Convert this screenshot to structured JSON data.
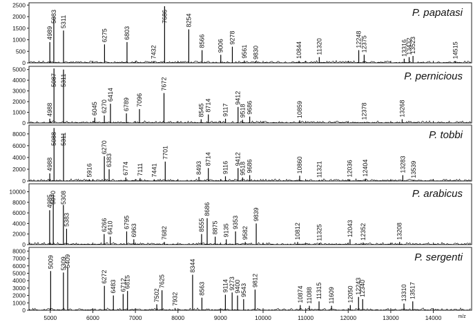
{
  "chart_data": [
    {
      "type": "line",
      "title": "P. papatasi",
      "xlabel": "m/z",
      "xlim": [
        4500,
        14900
      ],
      "ylim": [
        0,
        2600
      ],
      "yticks": [
        0,
        500,
        1000,
        1500,
        2000,
        2500
      ],
      "peaks": [
        {
          "x": 4989,
          "y": 900
        },
        {
          "x": 5083,
          "y": 2000
        },
        {
          "x": 5311,
          "y": 1400
        },
        {
          "x": 6275,
          "y": 800
        },
        {
          "x": 6803,
          "y": 900
        },
        {
          "x": 7432,
          "y": 80
        },
        {
          "x": 7686,
          "y": 2450
        },
        {
          "x": 8254,
          "y": 1450
        },
        {
          "x": 8566,
          "y": 550
        },
        {
          "x": 9006,
          "y": 350
        },
        {
          "x": 9278,
          "y": 700
        },
        {
          "x": 9561,
          "y": 100
        },
        {
          "x": 9830,
          "y": 60
        },
        {
          "x": 10844,
          "y": 90
        },
        {
          "x": 11320,
          "y": 250
        },
        {
          "x": 12248,
          "y": 550
        },
        {
          "x": 12375,
          "y": 350
        },
        {
          "x": 13316,
          "y": 180
        },
        {
          "x": 13432,
          "y": 250
        },
        {
          "x": 13523,
          "y": 300
        },
        {
          "x": 14515,
          "y": 80
        }
      ]
    },
    {
      "type": "line",
      "title": "P. pernicious",
      "xlabel": "m/z",
      "xlim": [
        4500,
        14900
      ],
      "ylim": [
        0,
        5300
      ],
      "yticks": [
        0,
        1000,
        2000,
        3000,
        4000,
        5000
      ],
      "peaks": [
        {
          "x": 4988,
          "y": 400
        },
        {
          "x": 5087,
          "y": 5100
        },
        {
          "x": 5311,
          "y": 5000
        },
        {
          "x": 6045,
          "y": 500
        },
        {
          "x": 6270,
          "y": 700
        },
        {
          "x": 6414,
          "y": 1800
        },
        {
          "x": 6789,
          "y": 900
        },
        {
          "x": 7096,
          "y": 1300
        },
        {
          "x": 7672,
          "y": 2800
        },
        {
          "x": 8545,
          "y": 350
        },
        {
          "x": 8714,
          "y": 800
        },
        {
          "x": 9117,
          "y": 400
        },
        {
          "x": 9412,
          "y": 1500
        },
        {
          "x": 9518,
          "y": 300
        },
        {
          "x": 9686,
          "y": 600
        },
        {
          "x": 10859,
          "y": 250
        },
        {
          "x": 12378,
          "y": 100
        },
        {
          "x": 13268,
          "y": 350
        }
      ]
    },
    {
      "type": "line",
      "title": "P. tobbi",
      "xlabel": "m/z",
      "xlim": [
        4500,
        14900
      ],
      "ylim": [
        0,
        9500
      ],
      "yticks": [
        0,
        2000,
        4000,
        6000,
        8000
      ],
      "peaks": [
        {
          "x": 4988,
          "y": 1300
        },
        {
          "x": 5088,
          "y": 9000
        },
        {
          "x": 5311,
          "y": 8000
        },
        {
          "x": 5916,
          "y": 300
        },
        {
          "x": 6270,
          "y": 4200
        },
        {
          "x": 6383,
          "y": 2000
        },
        {
          "x": 6774,
          "y": 600
        },
        {
          "x": 7111,
          "y": 500
        },
        {
          "x": 7441,
          "y": 300
        },
        {
          "x": 7701,
          "y": 3300
        },
        {
          "x": 8493,
          "y": 700
        },
        {
          "x": 8714,
          "y": 2200
        },
        {
          "x": 9116,
          "y": 800
        },
        {
          "x": 9412,
          "y": 2200
        },
        {
          "x": 9518,
          "y": 600
        },
        {
          "x": 9686,
          "y": 1000
        },
        {
          "x": 10860,
          "y": 900
        },
        {
          "x": 11321,
          "y": 200
        },
        {
          "x": 12036,
          "y": 300
        },
        {
          "x": 12404,
          "y": 400
        },
        {
          "x": 13283,
          "y": 1000
        },
        {
          "x": 13539,
          "y": 150
        }
      ]
    },
    {
      "type": "line",
      "title": "P. arabicus",
      "xlabel": "m/z",
      "xlim": [
        4500,
        14900
      ],
      "ylim": [
        0,
        11500
      ],
      "yticks": [
        0,
        2000,
        4000,
        6000,
        8000,
        10000
      ],
      "peaks": [
        {
          "x": 4985,
          "y": 6500
        },
        {
          "x": 5070,
          "y": 9500
        },
        {
          "x": 5308,
          "y": 7500
        },
        {
          "x": 5383,
          "y": 3000
        },
        {
          "x": 6266,
          "y": 2000
        },
        {
          "x": 6410,
          "y": 1500
        },
        {
          "x": 6795,
          "y": 2500
        },
        {
          "x": 6963,
          "y": 1000
        },
        {
          "x": 7682,
          "y": 500
        },
        {
          "x": 8555,
          "y": 2000
        },
        {
          "x": 8686,
          "y": 5000
        },
        {
          "x": 8875,
          "y": 1500
        },
        {
          "x": 9135,
          "y": 1000
        },
        {
          "x": 9353,
          "y": 2500
        },
        {
          "x": 9582,
          "y": 500
        },
        {
          "x": 9839,
          "y": 4000
        },
        {
          "x": 10812,
          "y": 500
        },
        {
          "x": 11325,
          "y": 300
        },
        {
          "x": 12043,
          "y": 1000
        },
        {
          "x": 12352,
          "y": 400
        },
        {
          "x": 13208,
          "y": 500
        }
      ]
    },
    {
      "type": "line",
      "title": "P. sergenti",
      "xlabel": "m/z",
      "xlim": [
        4500,
        14900
      ],
      "ylim": [
        0,
        8500
      ],
      "yticks": [
        0,
        1000,
        2000,
        3000,
        4000,
        5000,
        6000,
        7000,
        8000
      ],
      "peaks": [
        {
          "x": 5009,
          "y": 5300
        },
        {
          "x": 5309,
          "y": 5100
        },
        {
          "x": 5409,
          "y": 5800
        },
        {
          "x": 6272,
          "y": 3300
        },
        {
          "x": 6483,
          "y": 2000
        },
        {
          "x": 6712,
          "y": 2200
        },
        {
          "x": 6815,
          "y": 2600
        },
        {
          "x": 7502,
          "y": 800
        },
        {
          "x": 7625,
          "y": 2700
        },
        {
          "x": 7932,
          "y": 300
        },
        {
          "x": 8344,
          "y": 4800
        },
        {
          "x": 8563,
          "y": 1700
        },
        {
          "x": 9114,
          "y": 2100
        },
        {
          "x": 9273,
          "y": 2400
        },
        {
          "x": 9400,
          "y": 2000
        },
        {
          "x": 9543,
          "y": 1500
        },
        {
          "x": 9812,
          "y": 2800
        },
        {
          "x": 10874,
          "y": 700
        },
        {
          "x": 11088,
          "y": 600
        },
        {
          "x": 11315,
          "y": 1200
        },
        {
          "x": 11609,
          "y": 600
        },
        {
          "x": 12050,
          "y": 700
        },
        {
          "x": 12243,
          "y": 1800
        },
        {
          "x": 12340,
          "y": 1500
        },
        {
          "x": 13310,
          "y": 900
        },
        {
          "x": 13517,
          "y": 1200
        }
      ]
    }
  ],
  "xticks": [
    5000,
    6000,
    7000,
    8000,
    9000,
    10000,
    11000,
    12000,
    13000,
    14000
  ]
}
